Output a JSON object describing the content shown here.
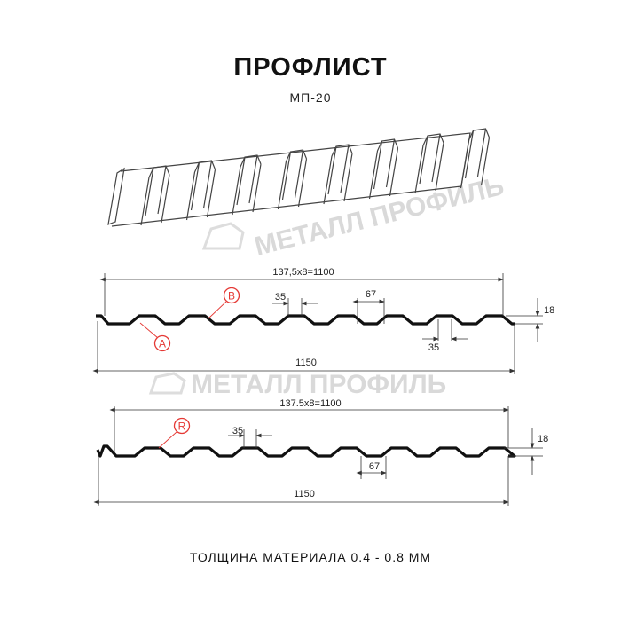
{
  "header": {
    "title": "ПРОФЛИСТ",
    "subtitle": "МП-20"
  },
  "watermark": {
    "text": "МЕТАЛЛ ПРОФИЛЬ"
  },
  "profile_a": {
    "pitch_label": "137,5x8=1100",
    "width_label": "1150",
    "rib_top_label": "35",
    "rib_bottom_label": "67",
    "height_label": "18",
    "valley_label": "35",
    "marker_b": "B",
    "marker_a": "A"
  },
  "profile_r": {
    "pitch_label": "137.5x8=1100",
    "width_label": "1150",
    "rib_top_label": "35",
    "rib_bottom_label": "67",
    "height_label": "18",
    "marker_r": "R"
  },
  "footer": {
    "thickness": "ТОЛЩИНА МАТЕРИАЛА 0.4 - 0.8 ММ"
  },
  "colors": {
    "profile": "#111111",
    "marker": "#e53935",
    "watermark": "#d9d9d9",
    "dimension": "#333333"
  }
}
